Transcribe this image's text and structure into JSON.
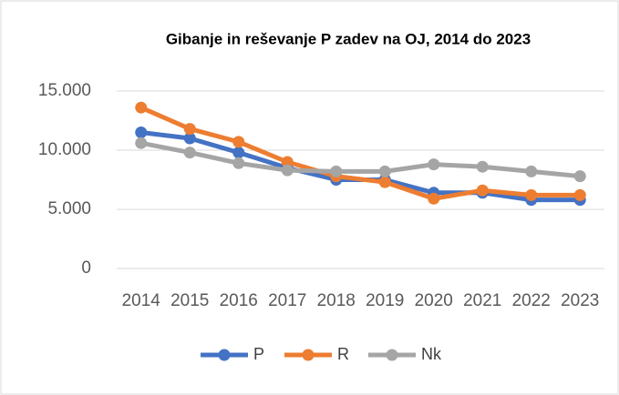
{
  "chart_data": {
    "type": "line",
    "title": "Gibanje in reševanje P zadev na OJ, 2014 do 2023",
    "categories": [
      "2014",
      "2015",
      "2016",
      "2017",
      "2018",
      "2019",
      "2020",
      "2021",
      "2022",
      "2023"
    ],
    "series": [
      {
        "name": "P",
        "color": "#4472c4",
        "values": [
          11500,
          11000,
          9800,
          8500,
          7500,
          7500,
          6400,
          6400,
          5800,
          5800
        ]
      },
      {
        "name": "R",
        "color": "#ed7d31",
        "values": [
          13600,
          11800,
          10700,
          9000,
          7800,
          7300,
          5900,
          6600,
          6200,
          6200
        ]
      },
      {
        "name": "Nk",
        "color": "#a5a5a5",
        "values": [
          10600,
          9800,
          8900,
          8300,
          8200,
          8200,
          8800,
          8600,
          8200,
          7800
        ]
      }
    ],
    "ylim": [
      0,
      15000
    ],
    "yticks": [
      0,
      {
        "value": 5000,
        "label": "5.000"
      },
      {
        "value": 10000,
        "label": "10.000"
      },
      {
        "value": 15000,
        "label": "15.000"
      }
    ],
    "grid": true,
    "legend": "bottom"
  }
}
